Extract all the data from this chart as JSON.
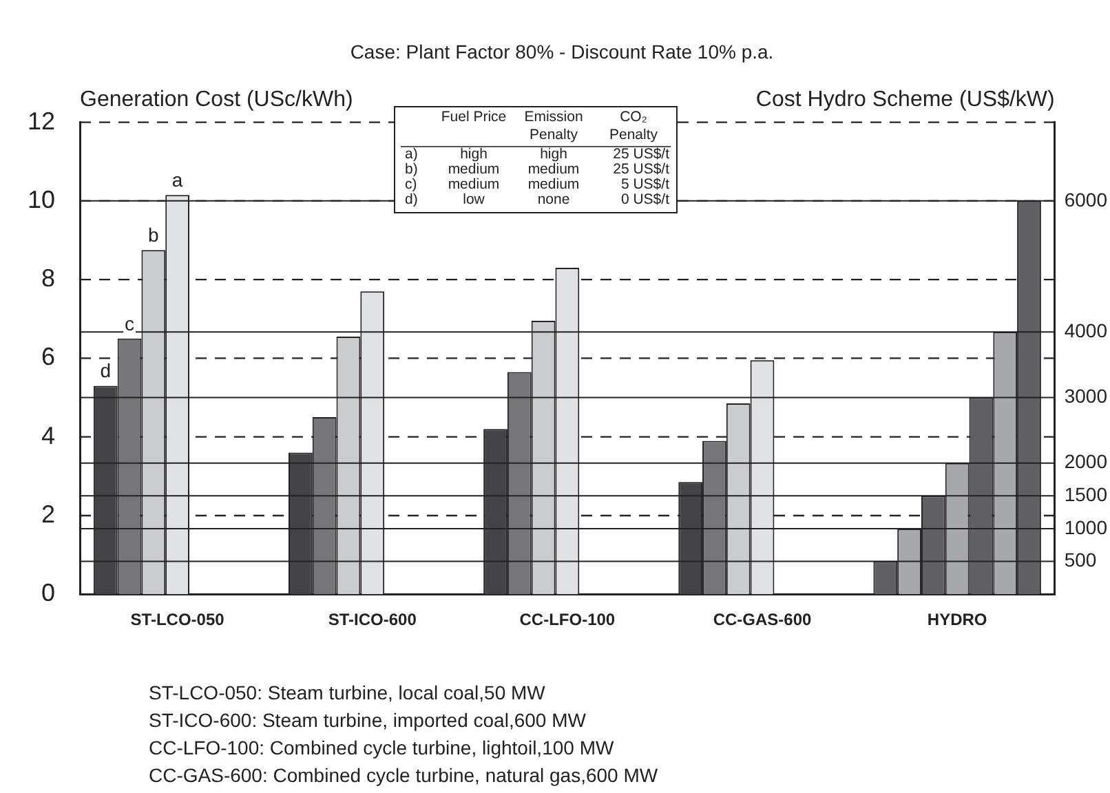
{
  "chart_data": {
    "type": "bar",
    "title": "Case: Plant Factor 80% - Discount Rate 10% p.a.",
    "ylabel": "Generation Cost (USc/kWh)",
    "y2label": "Cost Hydro Scheme (US$/kW)",
    "categories": [
      "ST-LCO-050",
      "ST-ICO-600",
      "CC-LFO-100",
      "CC-GAS-600",
      "HYDRO"
    ],
    "series": [
      {
        "name": "d",
        "color": "#444446",
        "values": [
          5.3,
          3.6,
          4.2,
          2.85,
          null
        ]
      },
      {
        "name": "c",
        "color": "#767678",
        "values": [
          6.5,
          4.5,
          5.65,
          3.9,
          null
        ]
      },
      {
        "name": "b",
        "color": "#cbcccd",
        "values": [
          8.75,
          6.55,
          6.95,
          4.85,
          null
        ]
      },
      {
        "name": "a",
        "color": "#e1e2e3",
        "values": [
          10.15,
          7.7,
          8.3,
          5.95,
          null
        ]
      },
      {
        "color": "#606064",
        "axis": "y2",
        "values": [
          null,
          null,
          null,
          null,
          500
        ]
      },
      {
        "color": "#a6a8ab",
        "axis": "y2",
        "values": [
          null,
          null,
          null,
          null,
          1000
        ]
      },
      {
        "color": "#606064",
        "axis": "y2",
        "values": [
          null,
          null,
          null,
          null,
          1500
        ]
      },
      {
        "color": "#a6a8ab",
        "axis": "y2",
        "values": [
          null,
          null,
          null,
          null,
          2000
        ]
      },
      {
        "color": "#606064",
        "axis": "y2",
        "values": [
          null,
          null,
          null,
          null,
          3000
        ]
      },
      {
        "color": "#a6a8ab",
        "axis": "y2",
        "values": [
          null,
          null,
          null,
          null,
          4000
        ]
      },
      {
        "color": "#606064",
        "axis": "y2",
        "values": [
          null,
          null,
          null,
          null,
          6000
        ]
      }
    ],
    "ylim": [
      0,
      12
    ],
    "yticks": [
      0,
      2,
      4,
      6,
      8,
      10,
      12
    ],
    "y2lim": [
      0,
      7200
    ],
    "y2ticks": [
      500,
      1000,
      1500,
      2000,
      3000,
      4000,
      6000
    ],
    "grid": true,
    "legend": false,
    "annotations": [
      "Fuel Price",
      "Emission Penalty",
      "CO₂ Penalty",
      "a)",
      "high",
      "high",
      "25 US$/t",
      "b)",
      "medium",
      "medium",
      "25 US$/t",
      "c)",
      "medium",
      "medium",
      "5 US$/t",
      "d)",
      "low",
      "none",
      "0 US$/t",
      "ST-LCO-050: Steam turbine, local coal,50 MW",
      "ST-ICO-600: Steam turbine, imported coal,600 MW",
      "CC-LFO-100: Combined cycle turbine, lightoil,100 MW",
      "CC-GAS-600: Combined cycle turbine, natural gas,600 MW"
    ]
  }
}
